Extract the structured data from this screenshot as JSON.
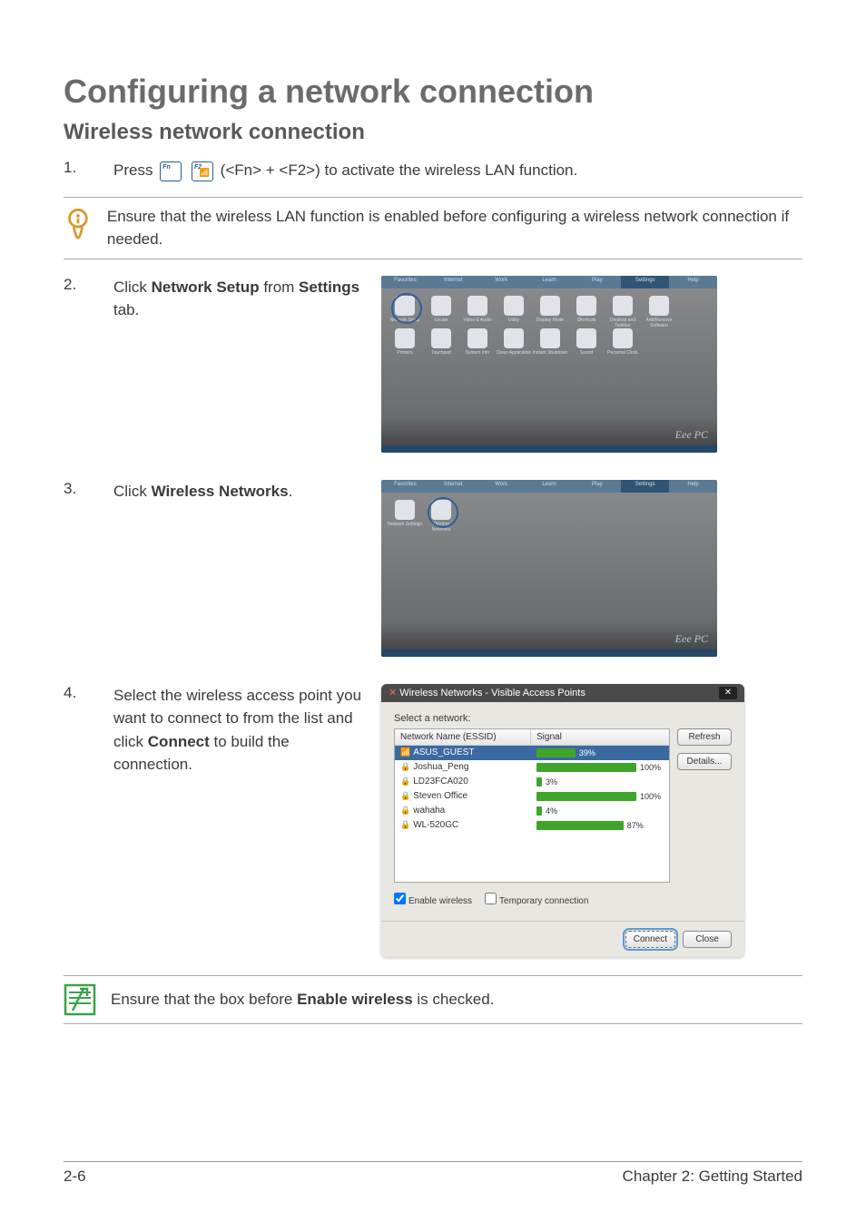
{
  "page": {
    "title": "Configuring a network connection",
    "subtitle": "Wireless network connection",
    "footer_left": "2-6",
    "footer_right": "Chapter 2: Getting Started"
  },
  "step1": {
    "num": "1.",
    "lead": "Press",
    "key1_label": "Fn",
    "key2_tl": "F2",
    "tail": " (<Fn> + <F2>) to activate the wireless LAN function."
  },
  "callout1": {
    "text": "Ensure that the wireless LAN function is enabled before configuring a wireless network connection if needed."
  },
  "step2": {
    "num": "2.",
    "pre": "Click ",
    "bold1": "Network Setup",
    "mid": " from ",
    "bold2": "Settings",
    "post": " tab."
  },
  "step3": {
    "num": "3.",
    "pre": "Click ",
    "bold1": "Wireless Networks",
    "post": "."
  },
  "step4": {
    "num": "4.",
    "pre": "Select the wireless access point you want to connect to from the list and click ",
    "bold1": "Connect",
    "post": " to build the connection."
  },
  "callout2": {
    "pre": "Ensure that the box before ",
    "bold1": "Enable wireless",
    "post": " is checked."
  },
  "desk": {
    "tabs": [
      "Favorites",
      "Internet",
      "Work",
      "Learn",
      "Play",
      "Settings",
      "Help"
    ],
    "active_tab_index": 5,
    "eee_text": "Eee PC",
    "icons1": [
      "Network Setup",
      "Locale",
      "Video & Audio",
      "Utility",
      "Display Mode",
      "Shortcuts",
      "Desktop and Taskbar",
      "Add/Remove Software"
    ],
    "icons2": [
      "Printers",
      "Touchpad",
      "System Info",
      "Clean Application",
      "Instant Shutdown",
      "Sound",
      "Personal Clock"
    ],
    "icons_sub": [
      "Network Settings",
      "Wireless Networks"
    ]
  },
  "wifi": {
    "title": "Wireless Networks - Visible Access Points",
    "select_label": "Select a network:",
    "col_name": "Network Name (ESSID)",
    "col_signal": "Signal",
    "networks": [
      {
        "name": "ASUS_GUEST",
        "signal": 39,
        "locked": false,
        "selected": true
      },
      {
        "name": "Joshua_Peng",
        "signal": 100,
        "locked": true,
        "selected": false
      },
      {
        "name": "LD23FCA020",
        "signal": 3,
        "locked": true,
        "selected": false
      },
      {
        "name": "Steven Office",
        "signal": 100,
        "locked": true,
        "selected": false
      },
      {
        "name": "wahaha",
        "signal": 4,
        "locked": true,
        "selected": false
      },
      {
        "name": "WL-520GC",
        "signal": 87,
        "locked": true,
        "selected": false
      }
    ],
    "btn_refresh": "Refresh",
    "btn_details": "Details...",
    "chk_enable": "Enable wireless",
    "chk_temp": "Temporary connection",
    "chk_enable_checked": true,
    "chk_temp_checked": false,
    "btn_connect": "Connect",
    "btn_close": "Close",
    "bar_color": "#3fa528"
  },
  "colors": {
    "heading": "#6b6b6b",
    "subheading": "#595959",
    "body": "#3a3a3a",
    "key_border": "#23608f"
  }
}
